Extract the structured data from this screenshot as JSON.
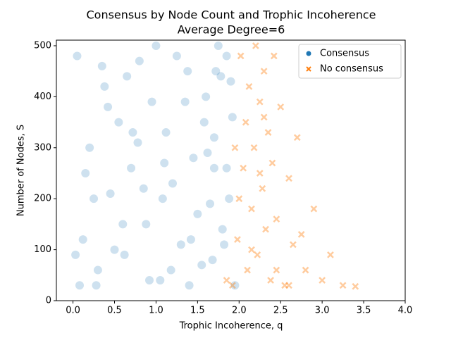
{
  "chart_data": {
    "type": "scatter",
    "title": "Consensus by Node Count and Trophic Incoherence",
    "subtitle": "Average Degree=6",
    "x_label": "Trophic Incoherence, q",
    "y_label": "Number of Nodes, S",
    "xlim": [
      -0.2,
      4.0
    ],
    "ylim": [
      0,
      511
    ],
    "xticks": [
      {
        "value": 0,
        "label": "0.0"
      },
      0.5,
      {
        "value": 1,
        "label": "1.0"
      },
      1.5,
      {
        "value": 2,
        "label": "2.0"
      },
      2.5,
      {
        "value": 3,
        "label": "3.0"
      },
      3.5,
      {
        "value": 4,
        "label": "4.0"
      }
    ],
    "yticks": [
      0,
      100,
      200,
      300,
      400,
      500
    ],
    "legend": "upper right",
    "grid": false,
    "series": [
      {
        "name": "Consensus",
        "color": "#1f77b4",
        "marker": "circle",
        "x": [
          0.05,
          0.12,
          0.2,
          0.3,
          0.38,
          0.45,
          0.55,
          0.62,
          0.7,
          0.8,
          0.88,
          0.95,
          1.05,
          1.12,
          1.2,
          1.3,
          1.38,
          1.45,
          1.55,
          1.6,
          1.65,
          1.7,
          1.75,
          1.8,
          1.85,
          1.9,
          0.08,
          0.25,
          0.42,
          0.6,
          0.78,
          0.92,
          1.1,
          1.25,
          1.42,
          1.58,
          1.68,
          1.78,
          1.88,
          1.95,
          0.15,
          0.35,
          0.5,
          0.72,
          0.85,
          1.0,
          1.18,
          1.35,
          1.5,
          1.62,
          1.72,
          1.82,
          1.92,
          0.03,
          0.28,
          0.65,
          1.08,
          1.4,
          1.7,
          1.85
        ],
        "values": [
          480,
          120,
          300,
          60,
          420,
          210,
          350,
          90,
          260,
          470,
          150,
          390,
          40,
          330,
          230,
          110,
          450,
          280,
          70,
          400,
          190,
          320,
          500,
          140,
          260,
          430,
          30,
          200,
          380,
          150,
          310,
          40,
          270,
          480,
          120,
          350,
          80,
          440,
          200,
          30,
          250,
          460,
          100,
          330,
          220,
          500,
          60,
          390,
          170,
          290,
          450,
          110,
          360,
          90,
          30,
          440,
          200,
          30,
          260,
          480
        ]
      },
      {
        "name": "No consensus",
        "color": "#ff7f0e",
        "marker": "x",
        "x": [
          1.85,
          1.92,
          1.98,
          2.02,
          2.05,
          2.08,
          2.1,
          2.12,
          2.15,
          2.18,
          2.2,
          2.22,
          2.25,
          2.28,
          2.3,
          2.32,
          2.35,
          2.38,
          2.4,
          2.42,
          2.45,
          2.5,
          2.55,
          2.6,
          2.65,
          2.7,
          2.8,
          2.9,
          3.0,
          3.1,
          3.25,
          3.4,
          2.0,
          2.15,
          2.3,
          2.45,
          2.6,
          2.75,
          1.95,
          2.25
        ],
        "values": [
          40,
          30,
          120,
          480,
          260,
          350,
          60,
          420,
          180,
          300,
          500,
          90,
          390,
          220,
          450,
          140,
          330,
          40,
          270,
          480,
          160,
          380,
          30,
          240,
          110,
          320,
          60,
          180,
          40,
          90,
          30,
          28,
          200,
          100,
          360,
          60,
          30,
          130,
          300,
          250
        ]
      }
    ]
  }
}
